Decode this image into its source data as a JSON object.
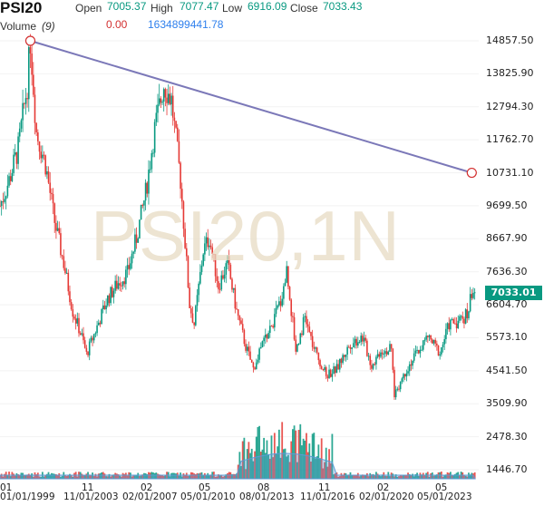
{
  "header": {
    "symbol": "PSI20",
    "open_label": "Open",
    "open_value": "7005.37",
    "high_label": "High",
    "high_value": "7077.47",
    "low_label": "Low",
    "low_value": "6916.09",
    "close_label": "Close",
    "close_value": "7033.43",
    "volume_label": "Volume",
    "volume_period": "(9)",
    "volume_value_1": "0.00",
    "volume_value_2": "1634899441.78"
  },
  "watermark": "PSI20,1N",
  "price_badge": "7033.01",
  "colors": {
    "up": "#089981",
    "down": "#e53935",
    "trendline": "#7b78b8",
    "volume": "#5b9bd5",
    "badge": "#089981"
  },
  "chart_data": {
    "type": "candlestick",
    "y_ticks": [
      "14857.50",
      "13825.90",
      "12794.30",
      "11762.70",
      "10731.10",
      "9699.50",
      "8667.90",
      "7636.30",
      "6604.70",
      "5573.10",
      "4541.50",
      "3509.90",
      "2478.30",
      "1446.70"
    ],
    "x_ticks": [
      {
        "top": "01",
        "bottom": "01/01/1999"
      },
      {
        "top": "11",
        "bottom": "11/01/2003"
      },
      {
        "top": "02",
        "bottom": "02/01/2007"
      },
      {
        "top": "05",
        "bottom": "05/01/2010"
      },
      {
        "top": "08",
        "bottom": "08/01/2013"
      },
      {
        "top": "11",
        "bottom": "11/01/2016"
      },
      {
        "top": "02",
        "bottom": "02/01/2020"
      },
      {
        "top": "05",
        "bottom": "05/01/2023"
      }
    ],
    "trendline": {
      "start": {
        "date": "2000-03",
        "value": 14857.5
      },
      "end": {
        "date": "2024-06",
        "value": 10731.1
      }
    },
    "series": [
      {
        "date": "1998-07",
        "value": 9700
      },
      {
        "date": "1999-01",
        "value": 10500
      },
      {
        "date": "1999-07",
        "value": 11500
      },
      {
        "date": "2000-01",
        "value": 13500
      },
      {
        "date": "2000-03",
        "value": 14850
      },
      {
        "date": "2000-07",
        "value": 12000
      },
      {
        "date": "2001-01",
        "value": 11000
      },
      {
        "date": "2001-07",
        "value": 9200
      },
      {
        "date": "2002-01",
        "value": 7900
      },
      {
        "date": "2002-07",
        "value": 6400
      },
      {
        "date": "2003-01",
        "value": 5600
      },
      {
        "date": "2003-04",
        "value": 5050
      },
      {
        "date": "2003-10",
        "value": 5800
      },
      {
        "date": "2004-06",
        "value": 6800
      },
      {
        "date": "2005-01",
        "value": 7300
      },
      {
        "date": "2005-07",
        "value": 7600
      },
      {
        "date": "2006-01",
        "value": 8700
      },
      {
        "date": "2006-07",
        "value": 10100
      },
      {
        "date": "2007-01",
        "value": 12100
      },
      {
        "date": "2007-07",
        "value": 13500
      },
      {
        "date": "2007-12",
        "value": 13000
      },
      {
        "date": "2008-06",
        "value": 10500
      },
      {
        "date": "2008-12",
        "value": 6600
      },
      {
        "date": "2009-03",
        "value": 6000
      },
      {
        "date": "2009-09",
        "value": 8300
      },
      {
        "date": "2010-01",
        "value": 8700
      },
      {
        "date": "2010-07",
        "value": 7200
      },
      {
        "date": "2011-01",
        "value": 7900
      },
      {
        "date": "2011-07",
        "value": 6400
      },
      {
        "date": "2012-01",
        "value": 5300
      },
      {
        "date": "2012-06",
        "value": 4600
      },
      {
        "date": "2013-01",
        "value": 5500
      },
      {
        "date": "2013-06",
        "value": 5900
      },
      {
        "date": "2014-01",
        "value": 6900
      },
      {
        "date": "2014-04",
        "value": 7700
      },
      {
        "date": "2014-10",
        "value": 5200
      },
      {
        "date": "2015-04",
        "value": 6200
      },
      {
        "date": "2015-10",
        "value": 5200
      },
      {
        "date": "2016-06",
        "value": 4400
      },
      {
        "date": "2017-01",
        "value": 4600
      },
      {
        "date": "2017-10",
        "value": 5400
      },
      {
        "date": "2018-06",
        "value": 5600
      },
      {
        "date": "2018-12",
        "value": 4700
      },
      {
        "date": "2019-06",
        "value": 5200
      },
      {
        "date": "2020-01",
        "value": 5200
      },
      {
        "date": "2020-03",
        "value": 3800
      },
      {
        "date": "2020-11",
        "value": 4600
      },
      {
        "date": "2021-06",
        "value": 5100
      },
      {
        "date": "2022-01",
        "value": 5600
      },
      {
        "date": "2022-09",
        "value": 5100
      },
      {
        "date": "2023-03",
        "value": 6000
      },
      {
        "date": "2023-09",
        "value": 6100
      },
      {
        "date": "2024-03",
        "value": 6300
      },
      {
        "date": "2024-06",
        "value": 7033
      }
    ]
  }
}
